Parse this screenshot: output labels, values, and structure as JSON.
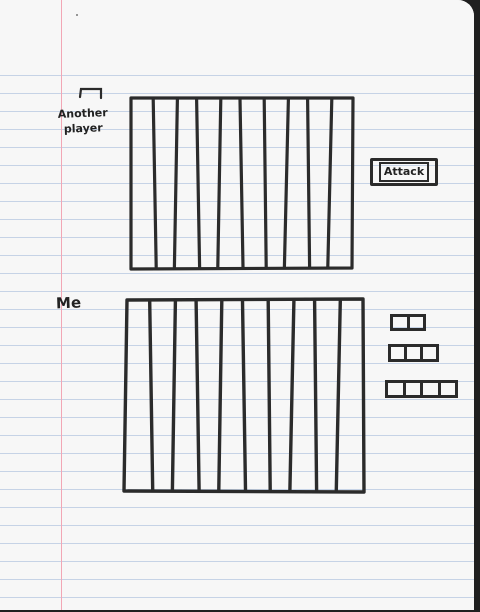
{
  "opponent": {
    "label": "Another\nplayer",
    "icon": "tent-icon",
    "columns": 10
  },
  "attack": {
    "label": "Attack"
  },
  "me": {
    "label": "Me",
    "columns": 10
  },
  "fleet": [
    {
      "name": "ship-2",
      "cells": 2
    },
    {
      "name": "ship-3",
      "cells": 3
    },
    {
      "name": "ship-4",
      "cells": 4
    }
  ],
  "colors": {
    "ink": "#2b2b2b",
    "paper": "#f7f7f7",
    "rule_line": "#c6d3e6",
    "margin_line": "#f2a7b5"
  }
}
